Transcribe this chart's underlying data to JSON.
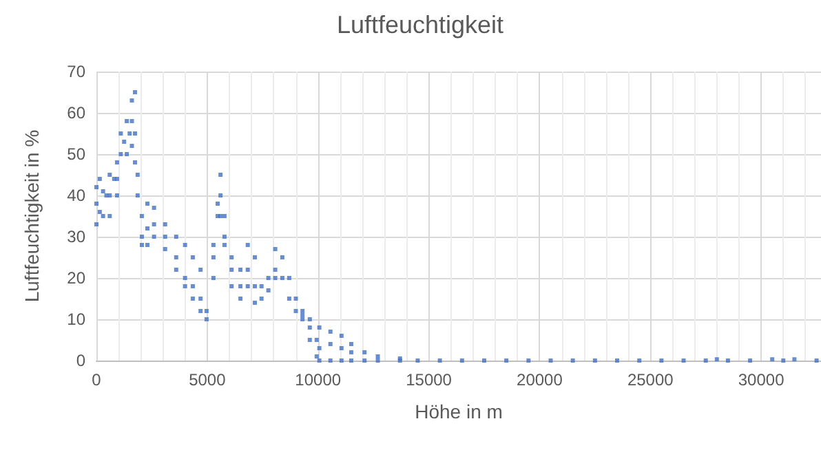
{
  "chart_data": {
    "type": "scatter",
    "title": "Luftfeuchtigkeit",
    "xlabel": "Höhe in m",
    "ylabel": "Luftfeuchtigkeit in %",
    "xlim": [
      0,
      32700
    ],
    "xticks": [
      0,
      5000,
      10000,
      15000,
      20000,
      25000,
      30000
    ],
    "ylim": [
      0,
      70
    ],
    "yticks": [
      0,
      10,
      20,
      30,
      40,
      50,
      60,
      70
    ],
    "grid": true,
    "marker": "square",
    "series": [
      {
        "color": "#4472c4",
        "x": [
          0,
          0,
          0,
          150,
          150,
          300,
          300,
          450,
          600,
          600,
          600,
          800,
          930,
          930,
          930,
          1100,
          1100,
          1250,
          1370,
          1370,
          1500,
          1600,
          1600,
          1600,
          1740,
          1740,
          1740,
          1860,
          1860,
          2050,
          2050,
          2050,
          2300,
          2300,
          2300,
          2600,
          2600,
          2600,
          3100,
          3100,
          3100,
          3600,
          3600,
          3600,
          4000,
          4000,
          4000,
          4350,
          4350,
          4350,
          4700,
          4700,
          4700,
          4970,
          4970,
          5280,
          5280,
          5280,
          5470,
          5470,
          5600,
          5600,
          5600,
          5780,
          5780,
          5780,
          6100,
          6100,
          6100,
          6500,
          6500,
          6500,
          6830,
          6830,
          6830,
          7150,
          7150,
          7150,
          7450,
          7450,
          7760,
          7760,
          8070,
          8070,
          8070,
          8390,
          8390,
          8700,
          8700,
          9000,
          9000,
          9300,
          9300,
          9300,
          9630,
          9630,
          9630,
          9940,
          9940,
          10060,
          10060,
          10060,
          10560,
          10560,
          10560,
          11060,
          11060,
          11060,
          11500,
          11500,
          11500,
          12100,
          12100,
          12700,
          12700,
          13700,
          13700,
          14500,
          15500,
          16500,
          17500,
          18500,
          19500,
          20500,
          21500,
          22500,
          23500,
          24500,
          25500,
          26500,
          27500,
          28000,
          28500,
          29500,
          30500,
          31000,
          31500,
          32500
        ],
        "values": [
          33,
          38,
          42,
          36,
          44,
          35,
          41,
          40,
          35,
          40,
          45,
          44,
          40,
          44,
          48,
          50,
          55,
          53,
          50,
          58,
          55,
          52,
          58,
          63,
          65,
          55,
          48,
          45,
          40,
          35,
          30,
          28,
          38,
          32,
          28,
          37,
          33,
          30,
          33,
          30,
          27,
          30,
          25,
          22,
          28,
          20,
          18,
          25,
          18,
          15,
          22,
          15,
          12,
          12,
          10,
          28,
          25,
          20,
          38,
          35,
          45,
          40,
          35,
          35,
          30,
          28,
          25,
          22,
          18,
          22,
          18,
          15,
          28,
          22,
          18,
          25,
          18,
          14,
          18,
          15,
          20,
          17,
          27,
          22,
          20,
          25,
          20,
          20,
          15,
          15,
          12,
          12,
          10,
          11,
          10,
          8,
          5,
          5,
          1,
          0,
          3,
          8,
          0,
          4,
          7,
          0,
          3,
          6,
          0,
          2,
          4,
          0,
          2,
          0,
          1,
          0,
          0.5,
          0,
          0,
          0,
          0,
          0,
          0,
          0,
          0,
          0,
          0,
          0,
          0,
          0,
          0,
          0.3,
          0,
          0,
          0.3,
          0,
          0.3,
          0
        ]
      }
    ]
  }
}
